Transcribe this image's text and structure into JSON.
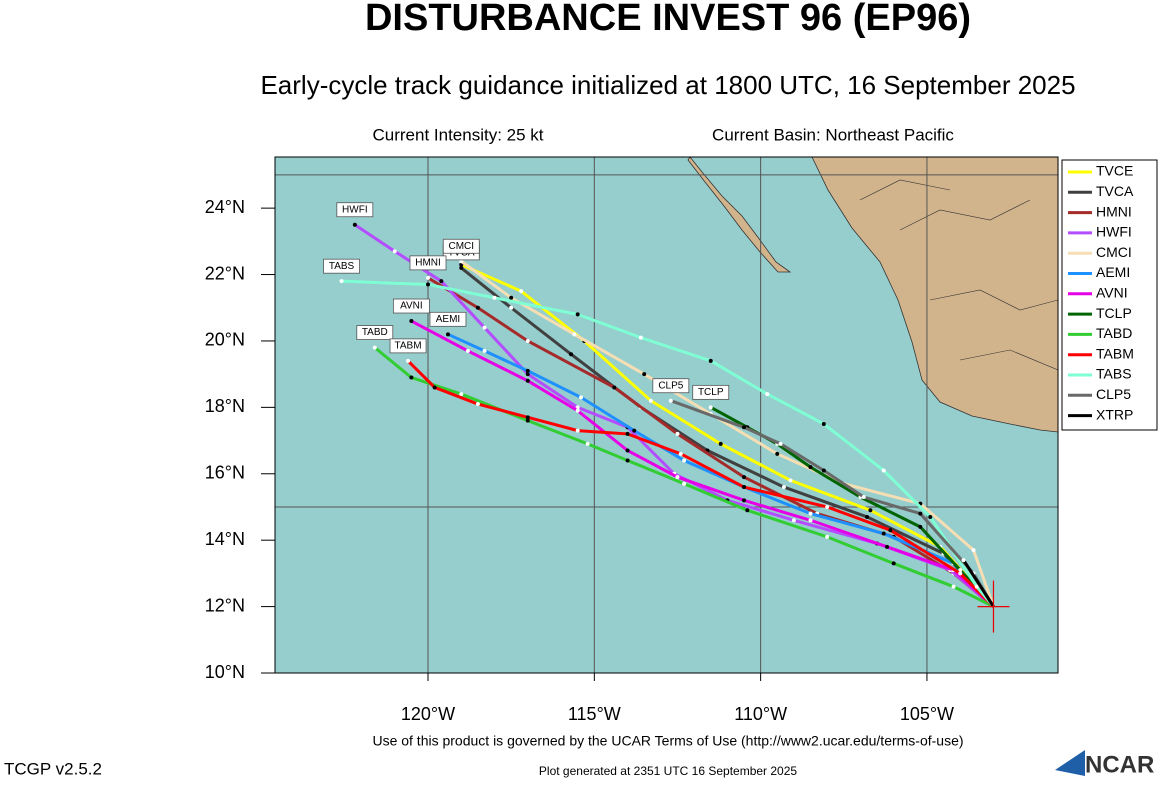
{
  "chart_data": {
    "type": "line",
    "title": "DISTURBANCE INVEST 96 (EP96)",
    "subtitle": "Early-cycle track guidance initialized at 1800 UTC, 16 September 2025",
    "intensity": "Current Intensity: 25 kt",
    "basin": "Current Basin: Northeast Pacific",
    "footer": "Use of this product is governed by the UCAR Terms of Use (http://www2.ucar.edu/terms-of-use)",
    "version": "TCGP v2.5.2",
    "generated": "Plot generated at 2351 UTC  16 September 2025",
    "logo": "NCAR",
    "xlim": [
      -124.6,
      -101.06
    ],
    "ylim": [
      10,
      25.54
    ],
    "xticks": [
      {
        "value": -120,
        "label": "120°W"
      },
      {
        "value": -115,
        "label": "115°W"
      },
      {
        "value": -110,
        "label": "110°W"
      },
      {
        "value": -105,
        "label": "105°W"
      }
    ],
    "yticks": [
      {
        "value": 10,
        "label": "10°N"
      },
      {
        "value": 12,
        "label": "12°N"
      },
      {
        "value": 14,
        "label": "14°N"
      },
      {
        "value": 16,
        "label": "16°N"
      },
      {
        "value": 18,
        "label": "18°N"
      },
      {
        "value": 20,
        "label": "20°N"
      },
      {
        "value": 22,
        "label": "22°N"
      },
      {
        "value": 24,
        "label": "24°N"
      }
    ],
    "ygrid": [
      15,
      25
    ],
    "storm_position": {
      "x": -103,
      "y": 12
    },
    "series": [
      {
        "name": "TVCE",
        "color": "#ffff00",
        "x": [
          -103,
          -104.6,
          -106.7,
          -109.1,
          -111.2,
          -113.3,
          -115.3,
          -117.2,
          -119.0
        ],
        "values": [
          12,
          13.8,
          14.9,
          15.8,
          16.9,
          18.2,
          20.0,
          21.5,
          22.3
        ]
      },
      {
        "name": "TVCA",
        "color": "#404040",
        "x": [
          -103,
          -104.5,
          -106.8,
          -109.3,
          -111.6,
          -113.6,
          -115.7,
          -117.5,
          -119.0
        ],
        "values": [
          12,
          13.6,
          14.7,
          15.6,
          16.7,
          18.0,
          19.6,
          21.0,
          22.2
        ]
      },
      {
        "name": "HMNI",
        "color": "#a52a2a",
        "x": [
          -103,
          -104.2,
          -106.0,
          -108.3,
          -110.5,
          -112.5,
          -114.4,
          -117.0,
          -118.5,
          -120.0
        ],
        "values": [
          12,
          13.0,
          14.1,
          14.8,
          15.9,
          17.2,
          18.6,
          20.0,
          21.0,
          21.9
        ]
      },
      {
        "name": "HWFI",
        "color": "#b44dff",
        "x": [
          -103,
          -104.3,
          -106.5,
          -109.0,
          -111.0,
          -112.6,
          -114.0,
          -115.5,
          -117.0,
          -118.3,
          -119.6,
          -121.0,
          -122.2
        ],
        "values": [
          12,
          13.1,
          13.9,
          14.6,
          15.2,
          16.0,
          17.4,
          18.0,
          19.0,
          20.4,
          21.8,
          22.7,
          23.5
        ]
      },
      {
        "name": "CMCI",
        "color": "#f5deb3",
        "x": [
          -103,
          -103.6,
          -105.2,
          -107.5,
          -109.5,
          -111.5,
          -113.5,
          -115.6,
          -117.5,
          -119.0
        ],
        "values": [
          12,
          13.7,
          15.1,
          15.7,
          16.6,
          17.8,
          19.0,
          20.2,
          21.3,
          22.4
        ]
      },
      {
        "name": "AEMI",
        "color": "#1e90ff",
        "x": [
          -103,
          -104.2,
          -106.3,
          -108.5,
          -110.5,
          -112.3,
          -113.8,
          -115.4,
          -117.0,
          -118.3,
          -119.4
        ],
        "values": [
          12,
          13.3,
          14.2,
          14.8,
          15.6,
          16.4,
          17.3,
          18.3,
          19.1,
          19.7,
          20.2
        ]
      },
      {
        "name": "AVNI",
        "color": "#e600e6",
        "x": [
          -103,
          -104.2,
          -106.2,
          -108.5,
          -110.5,
          -112.5,
          -114.0,
          -115.5,
          -117.0,
          -118.8,
          -120.5
        ],
        "values": [
          12,
          13.1,
          13.8,
          14.6,
          15.2,
          15.9,
          16.7,
          17.9,
          18.8,
          19.7,
          20.6
        ]
      },
      {
        "name": "TCLP",
        "color": "#006400",
        "x": [
          -103,
          -104.0,
          -105.2,
          -107.0,
          -108.5,
          -109.5,
          -110.4,
          -111.5
        ],
        "values": [
          12,
          13.1,
          14.4,
          15.3,
          16.2,
          16.9,
          17.4,
          18.0
        ]
      },
      {
        "name": "TABD",
        "color": "#32cd32",
        "x": [
          -103,
          -104.2,
          -106.0,
          -108.0,
          -110.4,
          -112.3,
          -114.0,
          -115.2,
          -117.0,
          -119.0,
          -120.5,
          -121.6
        ],
        "values": [
          12,
          12.6,
          13.3,
          14.1,
          14.9,
          15.7,
          16.4,
          16.9,
          17.6,
          18.4,
          18.9,
          19.8
        ]
      },
      {
        "name": "TABM",
        "color": "#ff0000",
        "x": [
          -103,
          -104.0,
          -106.1,
          -108.0,
          -110.5,
          -112.4,
          -114.0,
          -115.5,
          -117.0,
          -118.5,
          -119.8,
          -120.6
        ],
        "values": [
          12,
          13.0,
          14.3,
          15.0,
          15.6,
          16.6,
          17.2,
          17.3,
          17.7,
          18.1,
          18.6,
          19.4
        ]
      },
      {
        "name": "TABS",
        "color": "#7fffd4",
        "x": [
          -103,
          -103.5,
          -104.9,
          -106.3,
          -108.1,
          -109.8,
          -111.5,
          -113.6,
          -115.5,
          -118.0,
          -120.0,
          -122.6
        ],
        "values": [
          12,
          12.6,
          14.7,
          16.1,
          17.5,
          18.4,
          19.4,
          20.1,
          20.8,
          21.3,
          21.7,
          21.8
        ]
      },
      {
        "name": "CLP5",
        "color": "#696969",
        "x": [
          -103,
          -103.6,
          -105.2,
          -106.9,
          -108.1,
          -109.4,
          -110.5,
          -112.7
        ],
        "values": [
          12,
          13.0,
          14.8,
          15.3,
          16.1,
          16.9,
          17.4,
          18.2
        ]
      },
      {
        "name": "XTRP",
        "color": "#000000",
        "x": [
          -103,
          -103.9
        ],
        "values": [
          12,
          13.4
        ]
      }
    ]
  }
}
